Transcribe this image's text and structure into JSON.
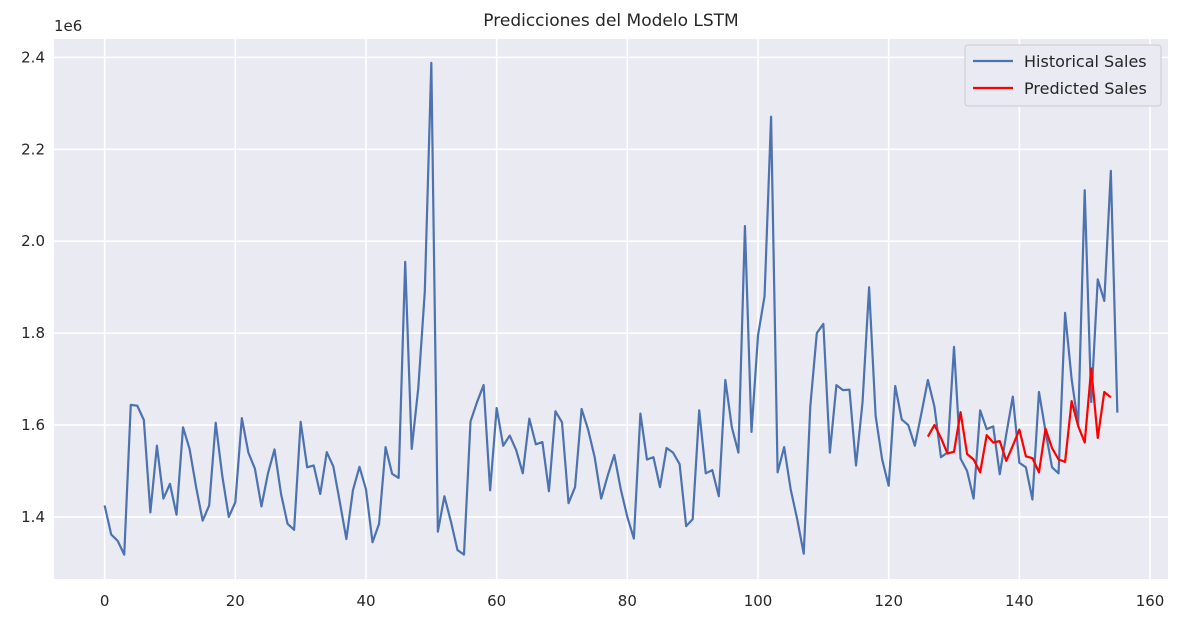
{
  "chart_data": {
    "type": "line",
    "title": "Predicciones del Modelo LSTM",
    "y_offset_label": "1e6",
    "xlabel": "",
    "ylabel": "",
    "xlim": [
      -7.75,
      162.75
    ],
    "ylim": [
      1.265,
      2.44
    ],
    "x_ticks": [
      0,
      20,
      40,
      60,
      80,
      100,
      120,
      140,
      160
    ],
    "x_tick_labels": [
      "0",
      "20",
      "40",
      "60",
      "80",
      "100",
      "120",
      "140",
      "160"
    ],
    "y_ticks": [
      1.4,
      1.6,
      1.8,
      2.0,
      2.2,
      2.4
    ],
    "y_tick_labels": [
      "1.4",
      "1.6",
      "1.8",
      "2.0",
      "2.2",
      "2.4"
    ],
    "grid": true,
    "legend_position": "top-right",
    "background": "#eaeaf2",
    "series": [
      {
        "name": "Historical Sales",
        "color": "#4c72b0",
        "x_start": 0,
        "values": [
          1.425,
          1.362,
          1.348,
          1.318,
          1.644,
          1.642,
          1.611,
          1.41,
          1.555,
          1.44,
          1.472,
          1.405,
          1.595,
          1.548,
          1.465,
          1.392,
          1.425,
          1.605,
          1.49,
          1.4,
          1.432,
          1.615,
          1.54,
          1.505,
          1.423,
          1.495,
          1.547,
          1.45,
          1.385,
          1.372,
          1.607,
          1.508,
          1.512,
          1.45,
          1.541,
          1.51,
          1.432,
          1.352,
          1.458,
          1.509,
          1.46,
          1.345,
          1.385,
          1.552,
          1.494,
          1.485,
          1.955,
          1.548,
          1.68,
          1.89,
          2.388,
          1.368,
          1.445,
          1.39,
          1.328,
          1.318,
          1.608,
          1.65,
          1.687,
          1.458,
          1.637,
          1.555,
          1.577,
          1.545,
          1.495,
          1.614,
          1.558,
          1.563,
          1.456,
          1.63,
          1.606,
          1.43,
          1.465,
          1.635,
          1.59,
          1.53,
          1.44,
          1.49,
          1.535,
          1.46,
          1.4,
          1.353,
          1.625,
          1.525,
          1.53,
          1.465,
          1.55,
          1.54,
          1.515,
          1.38,
          1.395,
          1.632,
          1.495,
          1.502,
          1.445,
          1.698,
          1.595,
          1.54,
          2.033,
          1.585,
          1.795,
          1.88,
          2.271,
          1.497,
          1.552,
          1.46,
          1.395,
          1.32,
          1.64,
          1.8,
          1.82,
          1.54,
          1.687,
          1.676,
          1.677,
          1.512,
          1.65,
          1.9,
          1.62,
          1.525,
          1.468,
          1.685,
          1.612,
          1.6,
          1.555,
          1.625,
          1.698,
          1.64,
          1.53,
          1.54,
          1.77,
          1.527,
          1.5,
          1.44,
          1.632,
          1.591,
          1.597,
          1.493,
          1.58,
          1.662,
          1.518,
          1.508,
          1.438,
          1.672,
          1.587,
          1.508,
          1.495,
          1.844,
          1.7,
          1.6,
          2.111,
          1.65,
          1.917,
          1.87,
          2.153,
          1.627
        ]
      },
      {
        "name": "Predicted Sales",
        "color": "#ff0000",
        "x_start": 126,
        "values": [
          1.575,
          1.6,
          1.572,
          1.538,
          1.542,
          1.628,
          1.537,
          1.525,
          1.497,
          1.578,
          1.562,
          1.565,
          1.522,
          1.555,
          1.59,
          1.532,
          1.528,
          1.497,
          1.592,
          1.55,
          1.525,
          1.52,
          1.652,
          1.598,
          1.562,
          1.723,
          1.572,
          1.672,
          1.66
        ]
      }
    ]
  }
}
